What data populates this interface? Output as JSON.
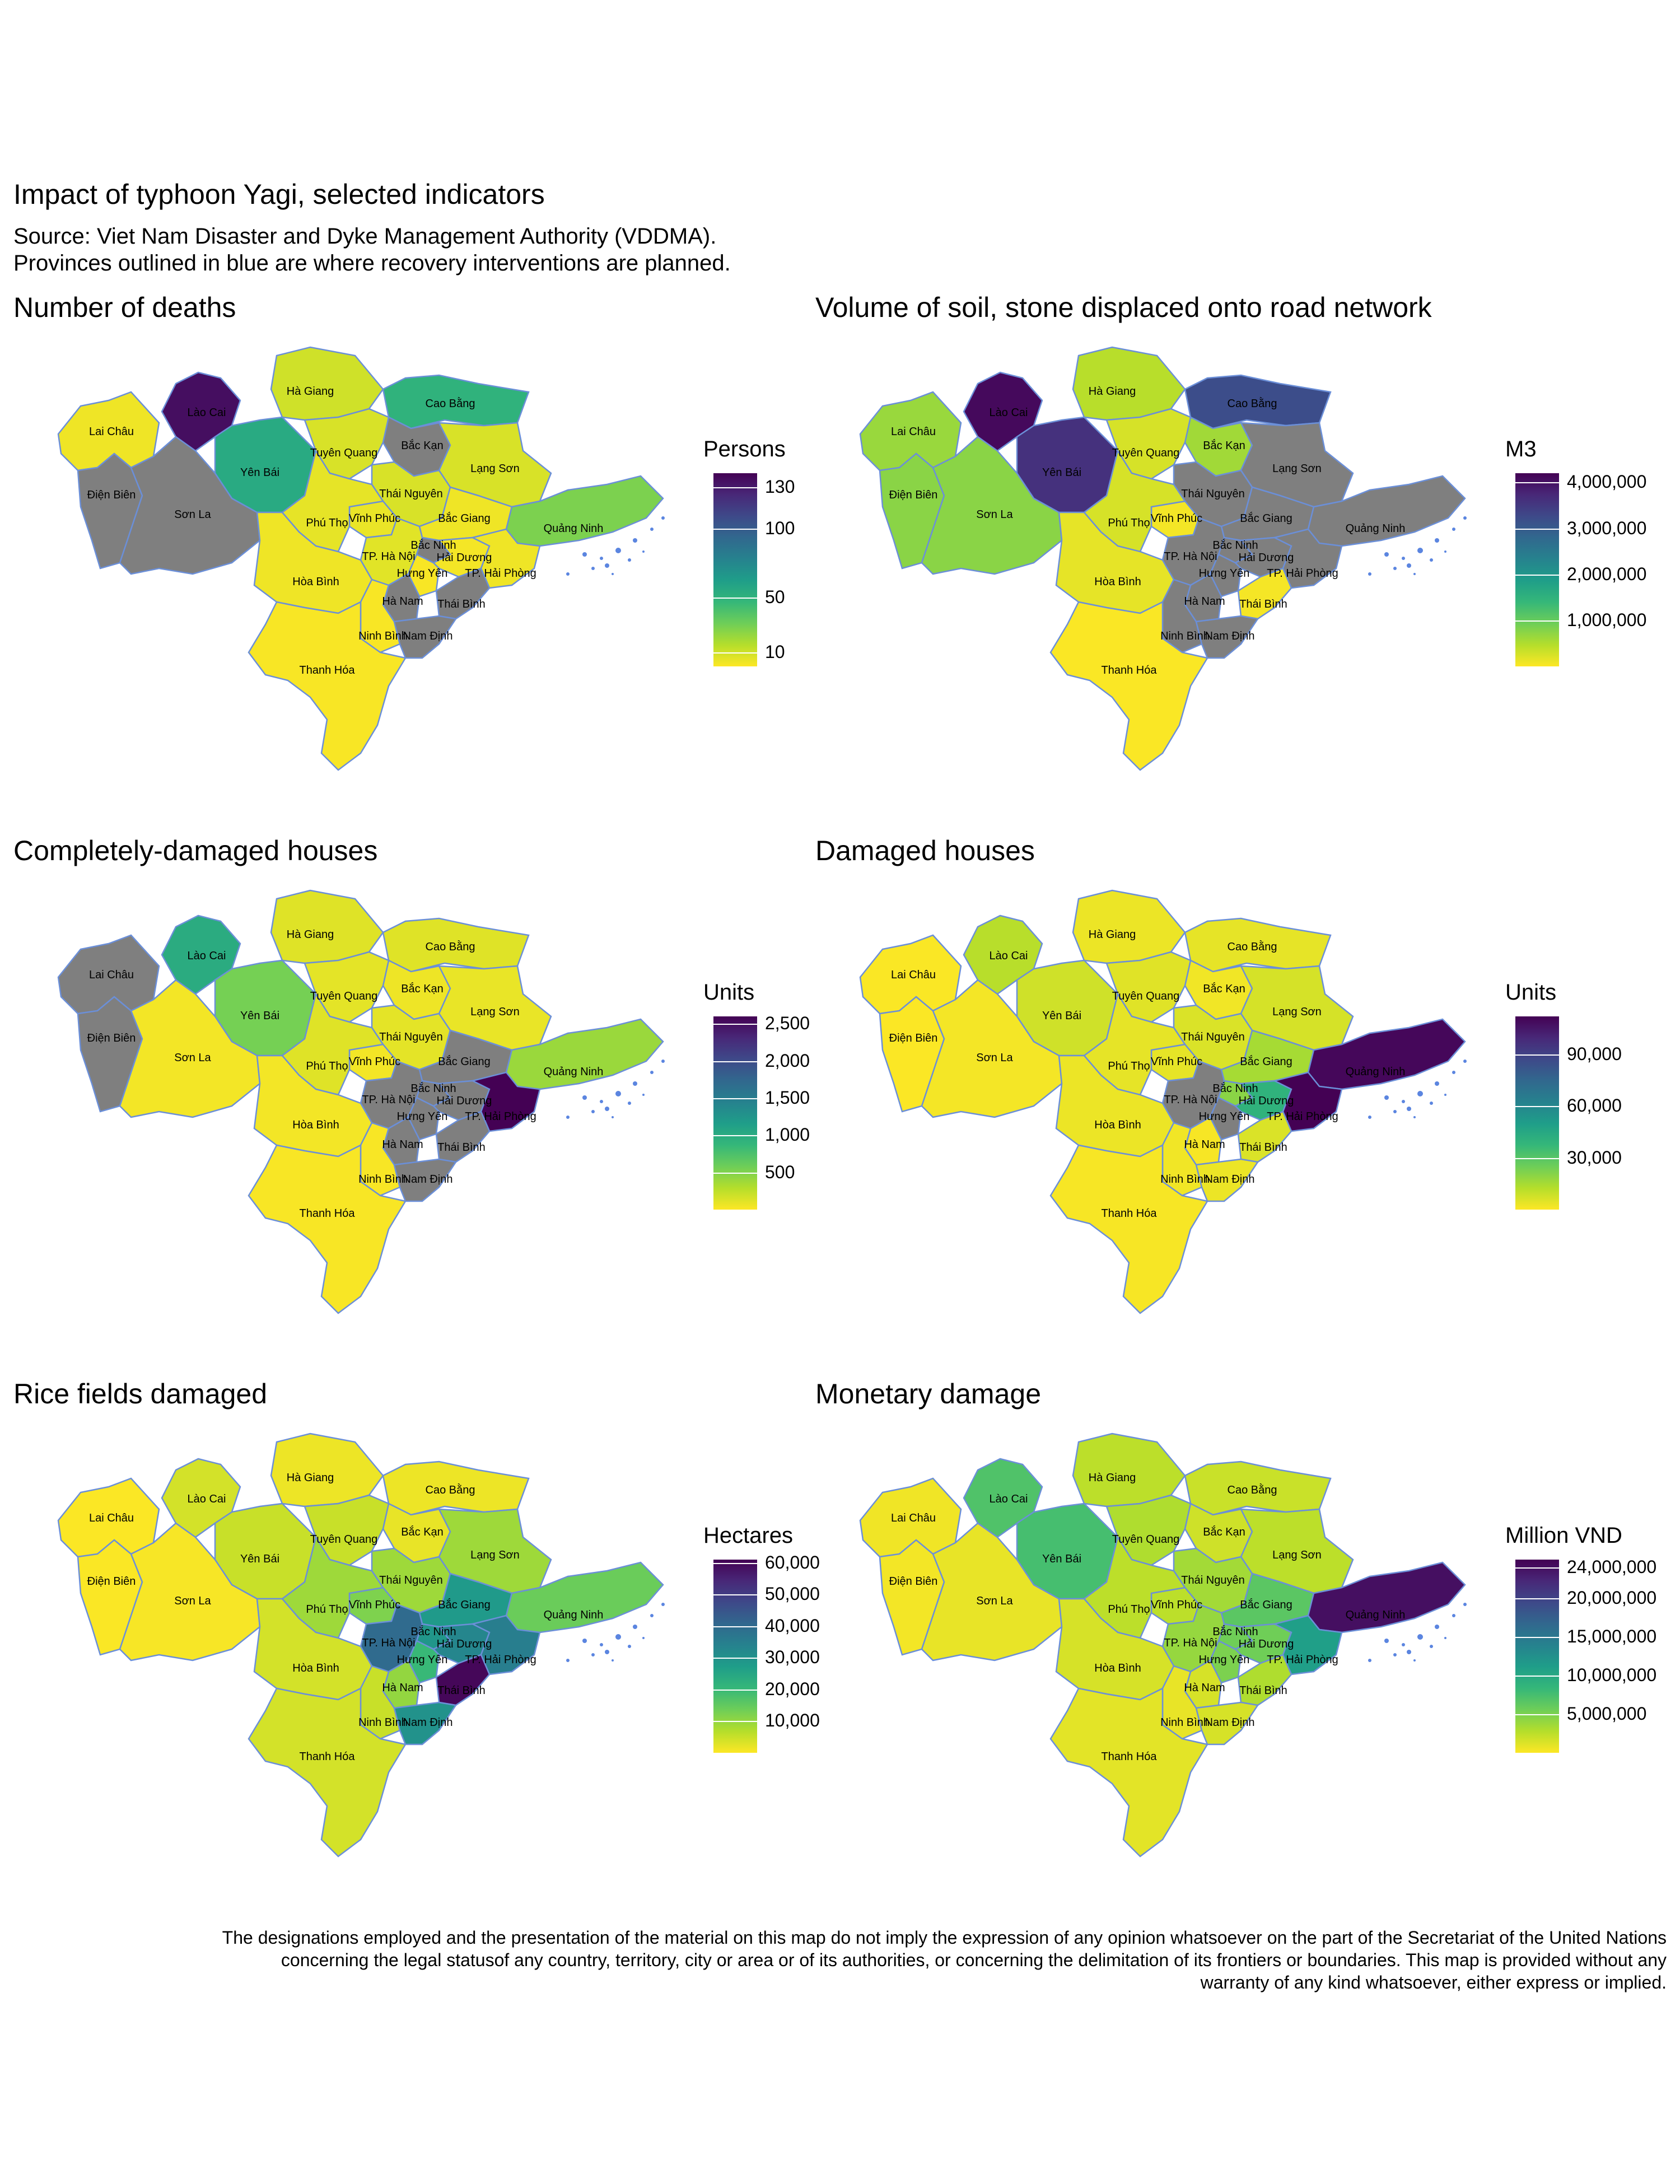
{
  "title": "Impact of typhoon Yagi, selected indicators",
  "subtitle": "Source: Viet Nam Disaster and Dyke Management Authority (VDDMA).\nProvinces outlined in blue are where recovery interventions are planned.",
  "disclaimer": "The designations employed and the presentation of the material on this map do not imply the expression of any opinion whatsoever on the part of the Secretariat of the United Nations concerning the legal statusof any country, territory, city or area or of its authorities, or concerning the delimitation of its frontiers or boundaries. This map is provided without any warranty of any kind whatsoever, either express or implied.",
  "colors": {
    "viridis": [
      "#fde725",
      "#b5de2b",
      "#6ece58",
      "#35b779",
      "#1f9e89",
      "#26828e",
      "#31688e",
      "#3e4989",
      "#482878",
      "#440154"
    ],
    "no_data": "#7f7f7f",
    "outline": "#6b8fd8",
    "water": "#5b85e0"
  },
  "provinces": [
    "Hà Giang",
    "Cao Bằng",
    "Lai Châu",
    "Lào Cai",
    "Bắc Kạn",
    "Tuyên Quang",
    "Yên Bái",
    "Lạng Sơn",
    "Điện Biên",
    "Thái Nguyên",
    "Sơn La",
    "Vĩnh Phúc",
    "Bắc Giang",
    "Phú Thọ",
    "Quảng Ninh",
    "Bắc Ninh",
    "TP. Hà Nội",
    "Hải Dương",
    "Hưng Yên",
    "TP. Hải Phòng",
    "Hòa Bình",
    "Hà Nam",
    "Thái Bình",
    "Ninh Bình",
    "Nam Định",
    "Thanh Hóa"
  ],
  "chart_data": [
    {
      "type": "choropleth",
      "title": "Number of deaths",
      "legend_title": "Persons",
      "legend_ticks": [
        "130",
        "100",
        "50",
        "10"
      ],
      "legend_tick_values": [
        130,
        100,
        50,
        10
      ],
      "range": [
        0,
        140
      ],
      "values": {
        "Hà Giang": 10,
        "Cao Bằng": 50,
        "Lai Châu": 3,
        "Lào Cai": 135,
        "Bắc Kạn": null,
        "Tuyên Quang": 8,
        "Yên Bái": 55,
        "Lạng Sơn": 8,
        "Điện Biên": null,
        "Thái Nguyên": 8,
        "Sơn La": null,
        "Vĩnh Phúc": 4,
        "Bắc Giang": 3,
        "Phú Thọ": 5,
        "Quảng Ninh": 28,
        "Bắc Ninh": null,
        "TP. Hà Nội": 6,
        "Hải Dương": 2,
        "Hưng Yên": 1,
        "TP. Hải Phòng": 3,
        "Hòa Bình": 3,
        "Hà Nam": null,
        "Thái Bình": null,
        "Ninh Bình": 1,
        "Nam Định": null,
        "Thanh Hóa": 1
      }
    },
    {
      "type": "choropleth",
      "title": "Volume of soil, stone displaced onto road network",
      "legend_title": "M3",
      "legend_ticks": [
        "4,000,000",
        "3,000,000",
        "2,000,000",
        "1,000,000"
      ],
      "legend_tick_values": [
        4000000,
        3000000,
        2000000,
        1000000
      ],
      "range": [
        0,
        4200000
      ],
      "values": {
        "Hà Giang": 450000,
        "Cao Bằng": 3200000,
        "Lai Châu": 650000,
        "Lào Cai": 4100000,
        "Bắc Kạn": 600000,
        "Tuyên Quang": 250000,
        "Yên Bái": 3600000,
        "Lạng Sơn": null,
        "Điện Biên": 750000,
        "Thái Nguyên": null,
        "Sơn La": 750000,
        "Vĩnh Phúc": 60000,
        "Bắc Giang": null,
        "Phú Thọ": 250000,
        "Quảng Ninh": null,
        "Bắc Ninh": null,
        "TP. Hà Nội": null,
        "Hải Dương": null,
        "Hưng Yên": null,
        "TP. Hải Phòng": null,
        "Hòa Bình": 150000,
        "Hà Nam": null,
        "Thái Bình": 50000,
        "Ninh Bình": null,
        "Nam Định": null,
        "Thanh Hóa": 20000
      }
    },
    {
      "type": "choropleth",
      "title": "Completely-damaged houses",
      "legend_title": "Units",
      "legend_ticks": [
        "2,500",
        "2,000",
        "1,500",
        "1,000",
        "500"
      ],
      "legend_tick_values": [
        2500,
        2000,
        1500,
        1000,
        500
      ],
      "range": [
        0,
        2600
      ],
      "values": {
        "Hà Giang": 120,
        "Cao Bằng": 120,
        "Lai Châu": null,
        "Lào Cai": 1000,
        "Bắc Kạn": 60,
        "Tuyên Quang": 100,
        "Yên Bái": 550,
        "Lạng Sơn": 80,
        "Điện Biên": null,
        "Thái Nguyên": 100,
        "Sơn La": 40,
        "Vĩnh Phúc": 40,
        "Bắc Giang": null,
        "Phú Thọ": 120,
        "Quảng Ninh": 400,
        "Bắc Ninh": null,
        "TP. Hà Nội": null,
        "Hải Dương": null,
        "Hưng Yên": null,
        "TP. Hải Phòng": 2600,
        "Hòa Bình": 40,
        "Hà Nam": null,
        "Thái Bình": null,
        "Ninh Bình": 20,
        "Nam Định": null,
        "Thanh Hóa": 20
      }
    },
    {
      "type": "choropleth",
      "title": "Damaged houses",
      "legend_title": "Units",
      "legend_ticks": [
        "90,000",
        "60,000",
        "30,000"
      ],
      "legend_tick_values": [
        90000,
        60000,
        30000
      ],
      "range": [
        0,
        112000
      ],
      "values": {
        "Hà Giang": 3000,
        "Cao Bằng": 4000,
        "Lai Châu": 500,
        "Lào Cai": 12000,
        "Bắc Kạn": 2000,
        "Tuyên Quang": 5000,
        "Yên Bái": 8000,
        "Lạng Sơn": 7000,
        "Điện Biên": 300,
        "Thái Nguyên": 6000,
        "Sơn La": 1500,
        "Vĩnh Phúc": 4000,
        "Bắc Giang": 15000,
        "Phú Thọ": 4000,
        "Quảng Ninh": 110000,
        "Bắc Ninh": 20000,
        "TP. Hà Nội": null,
        "Hải Dương": 40000,
        "Hưng Yên": null,
        "TP. Hải Phòng": 112000,
        "Hòa Bình": 3000,
        "Hà Nam": 1000,
        "Thái Bình": 6000,
        "Ninh Bình": 2000,
        "Nam Định": 3000,
        "Thanh Hóa": 1000
      }
    },
    {
      "type": "choropleth",
      "title": "Rice fields damaged",
      "legend_title": "Hectares",
      "legend_ticks": [
        "60,000",
        "50,000",
        "40,000",
        "30,000",
        "20,000",
        "10,000"
      ],
      "legend_tick_values": [
        60000,
        50000,
        40000,
        30000,
        20000,
        10000
      ],
      "range": [
        0,
        61000
      ],
      "values": {
        "Hà Giang": 1500,
        "Cao Bằng": 1500,
        "Lai Châu": 200,
        "Lào Cai": 4000,
        "Bắc Kạn": 2000,
        "Tuyên Quang": 5000,
        "Yên Bái": 5000,
        "Lạng Sơn": 9000,
        "Điện Biên": 300,
        "Thái Nguyên": 9000,
        "Sơn La": 600,
        "Vĩnh Phúc": 12000,
        "Bắc Giang": 28000,
        "Phú Thọ": 9000,
        "Quảng Ninh": 14000,
        "Bắc Ninh": 29000,
        "TP. Hà Nội": 40000,
        "Hải Dương": 33000,
        "Hưng Yên": 20000,
        "TP. Hải Phòng": 35000,
        "Hòa Bình": 4000,
        "Hà Nam": 10000,
        "Thái Bình": 60000,
        "Ninh Bình": 5000,
        "Nam Định": 30000,
        "Thanh Hóa": 4000
      }
    },
    {
      "type": "choropleth",
      "title": "Monetary damage",
      "legend_title": "Million VND",
      "legend_ticks": [
        "24,000,000",
        "20,000,000",
        "15,000,000",
        "10,000,000",
        "5,000,000"
      ],
      "legend_tick_values": [
        24000000,
        20000000,
        15000000,
        10000000,
        5000000
      ],
      "range": [
        0,
        25000000
      ],
      "values": {
        "Hà Giang": 2500000,
        "Cao Bằng": 2000000,
        "Lai Châu": 500000,
        "Lào Cai": 7000000,
        "Bắc Kạn": 1800000,
        "Tuyên Quang": 3000000,
        "Yên Bái": 7500000,
        "Lạng Sơn": 2500000,
        "Điện Biên": 400000,
        "Thái Nguyên": 3500000,
        "Sơn La": 800000,
        "Vĩnh Phúc": 2500000,
        "Bắc Giang": 6500000,
        "Phú Thọ": 2500000,
        "Quảng Ninh": 24000000,
        "Bắc Ninh": 5500000,
        "TP. Hà Nội": 4000000,
        "Hải Dương": 5500000,
        "Hưng Yên": 5000000,
        "TP. Hải Phòng": 11000000,
        "Hòa Bình": 1500000,
        "Hà Nam": 1500000,
        "Thái Bình": 3000000,
        "Ninh Bình": 800000,
        "Nam Định": 1500000,
        "Thanh Hóa": 1000000
      }
    }
  ]
}
